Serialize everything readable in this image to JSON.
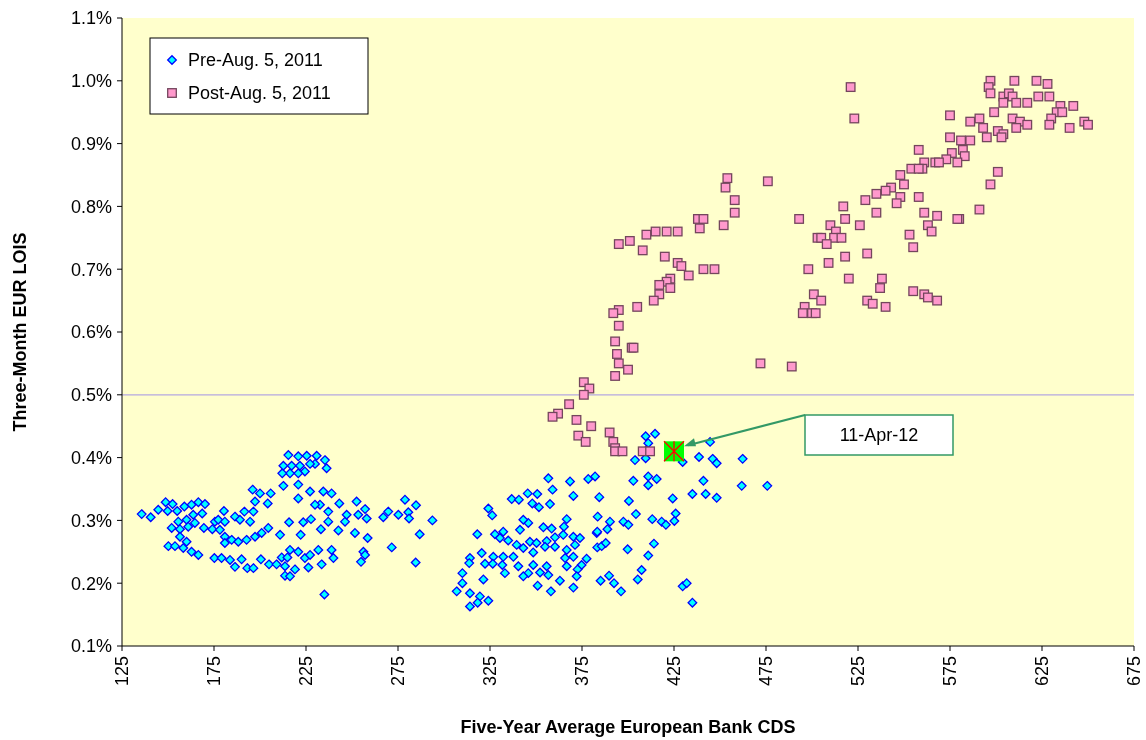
{
  "chart_data": {
    "type": "scatter",
    "xlabel": "Five-Year Average European Bank CDS",
    "ylabel": "Three-Month EUR LOIS",
    "xlim": [
      125,
      675
    ],
    "xticks": [
      125,
      175,
      225,
      275,
      325,
      375,
      425,
      475,
      525,
      575,
      625,
      675
    ],
    "ylim": [
      0.1,
      1.1
    ],
    "yticks": [
      {
        "value": 0.1,
        "label": "0.1%"
      },
      {
        "value": 0.2,
        "label": "0.2%"
      },
      {
        "value": 0.3,
        "label": "0.3%"
      },
      {
        "value": 0.4,
        "label": "0.4%"
      },
      {
        "value": 0.5,
        "label": "0.5%"
      },
      {
        "value": 0.6,
        "label": "0.6%"
      },
      {
        "value": 0.7,
        "label": "0.7%"
      },
      {
        "value": 0.8,
        "label": "0.8%"
      },
      {
        "value": 0.9,
        "label": "0.9%"
      },
      {
        "value": 1.0,
        "label": "1.0%"
      },
      {
        "value": 1.1,
        "label": "1.1%"
      }
    ],
    "grid": false,
    "legend": "top left",
    "ref_lines": [
      {
        "axis": "y",
        "value": 0.5,
        "color": "#b4a8e0"
      }
    ],
    "annotations": [
      "11-Apr-12"
    ],
    "series": [
      {
        "name": "Pre-Aug. 5, 2011",
        "color": "#00ffff",
        "marker": "diamond",
        "x": [
          135.7,
          140.6,
          144.7,
          148.7,
          152.5,
          149.8,
          155.0,
          158.9,
          162.8,
          166.5,
          170.1,
          168.6,
          163.7,
          160.1,
          155.6,
          152.0,
          156.5,
          161.0,
          164.6,
          156.5,
          160.1,
          150.2,
          153.8,
          158.3,
          162.8,
          166.5,
          169.5,
          174.1,
          175.5,
          180.4,
          186.4,
          191.5,
          196.4,
          196.0,
          200.0,
          205.8,
          204.2,
          197.3,
          177.3,
          180.9,
          178.2,
          180.9,
          180.9,
          184.6,
          188.2,
          192.7,
          197.3,
          200.9,
          204.5,
          194.6,
          189.1,
          175.2,
          179.1,
          183.7,
          190.0,
          186.4,
          193.1,
          196.4,
          200.5,
          204.9,
          209.0,
          211.8,
          214.9,
          213.6,
          213.6,
          216.3,
          219.0,
          224.4,
          220.8,
          216.3,
          226.3,
          233.5,
          227.2,
          231.7,
          238.9,
          239.9,
          235.0,
          210.9,
          215.8,
          222.1,
          223.5,
          227.7,
          233.1,
          237.1,
          242.6,
          246.2,
          251.6,
          247.1,
          253.4,
          258.0,
          257.1,
          252.5,
          243.1,
          237.1,
          232.6,
          229.9,
          238.9,
          234.4,
          227.2,
          220.8,
          220.8,
          212.7,
          215.4,
          220.8,
          225.4,
          230.8,
          235.3,
          236.2,
          229.9,
          224.4,
          220.8,
          216.3,
          212.1,
          212.7,
          217.2,
          221.7,
          227.2,
          258.5,
          256.2,
          257.1,
          254.9,
          269.7,
          267.0,
          275.2,
          280.6,
          278.8,
          284.8,
          281.0,
          271.6,
          286.8,
          284.6,
          293.7,
          409.6,
          414.7,
          411.0,
          410.1,
          403.8,
          409.6,
          429.7,
          444.6,
          438.6,
          446.0,
          448.2,
          462.3,
          402.9,
          411.0,
          415.6,
          411.0,
          441.0,
          461.8,
          475.7,
          435.0,
          442.2,
          448.2,
          424.3,
          400.5,
          384.4,
          370.3,
          356.7,
          368.5,
          378.4,
          382.1,
          359.0,
          345.5,
          350.7,
          336.8,
          340.7,
          348.0,
          351.6,
          357.6,
          324.1,
          326.2,
          404.3,
          383.5,
          390.2,
          397.5,
          400.2,
          413.2,
          418.3,
          420.6,
          425.2,
          425.9,
          388.8,
          383.0,
          366.7,
          365.2,
          358.5,
          354.0,
          345.8,
          343.1,
          341.3,
          332.2,
          327.7,
          318.1,
          330.4,
          334.9,
          339.5,
          346.7,
          350.3,
          355.8,
          360.3,
          364.8,
          370.3,
          373.9,
          371.2,
          366.7,
          360.3,
          354.9,
          348.5,
          343.1,
          337.7,
          332.2,
          326.8,
          320.5,
          314.1,
          313.7,
          322.3,
          326.5,
          331.7,
          340.4,
          348.5,
          355.8,
          365.8,
          370.3,
          377.5,
          374.8,
          372.6,
          366.7,
          372.1,
          363.0,
          356.7,
          352.2,
          345.8,
          343.1,
          333.1,
          321.4,
          310.0,
          310.0,
          306.9,
          314.1,
          319.5,
          324.1,
          318.3,
          314.1,
          350.9,
          358.1,
          370.3,
          385.1,
          389.7,
          392.4,
          396.2,
          383.3,
          385.7,
          387.9,
          399.8,
          414.1,
          411.0,
          407.4,
          405.3,
          429.7,
          431.9,
          435.0,
          383.3
        ],
        "values": [
          0.31,
          0.305,
          0.317,
          0.329,
          0.326,
          0.315,
          0.315,
          0.322,
          0.325,
          0.329,
          0.326,
          0.311,
          0.309,
          0.301,
          0.298,
          0.288,
          0.286,
          0.29,
          0.296,
          0.274,
          0.266,
          0.259,
          0.259,
          0.256,
          0.25,
          0.245,
          0.288,
          0.286,
          0.298,
          0.315,
          0.306,
          0.314,
          0.314,
          0.349,
          0.343,
          0.343,
          0.327,
          0.33,
          0.301,
          0.298,
          0.285,
          0.274,
          0.264,
          0.269,
          0.266,
          0.269,
          0.274,
          0.28,
          0.288,
          0.298,
          0.301,
          0.24,
          0.24,
          0.237,
          0.238,
          0.226,
          0.224,
          0.224,
          0.238,
          0.23,
          0.23,
          0.241,
          0.241,
          0.227,
          0.212,
          0.211,
          0.222,
          0.24,
          0.25,
          0.253,
          0.225,
          0.23,
          0.245,
          0.253,
          0.253,
          0.24,
          0.182,
          0.277,
          0.297,
          0.277,
          0.297,
          0.302,
          0.286,
          0.298,
          0.284,
          0.298,
          0.28,
          0.309,
          0.309,
          0.303,
          0.318,
          0.33,
          0.327,
          0.314,
          0.325,
          0.325,
          0.343,
          0.346,
          0.346,
          0.335,
          0.357,
          0.355,
          0.404,
          0.402,
          0.403,
          0.403,
          0.396,
          0.383,
          0.39,
          0.378,
          0.375,
          0.375,
          0.375,
          0.387,
          0.387,
          0.387,
          0.39,
          0.272,
          0.25,
          0.245,
          0.234,
          0.314,
          0.305,
          0.309,
          0.313,
          0.333,
          0.324,
          0.303,
          0.257,
          0.278,
          0.233,
          0.3,
          0.434,
          0.438,
          0.423,
          0.412,
          0.396,
          0.399,
          0.393,
          0.425,
          0.401,
          0.398,
          0.391,
          0.398,
          0.363,
          0.37,
          0.366,
          0.356,
          0.363,
          0.355,
          0.355,
          0.342,
          0.342,
          0.336,
          0.335,
          0.331,
          0.337,
          0.339,
          0.367,
          0.362,
          0.366,
          0.37,
          0.349,
          0.343,
          0.342,
          0.334,
          0.333,
          0.327,
          0.321,
          0.326,
          0.319,
          0.308,
          0.31,
          0.306,
          0.298,
          0.298,
          0.293,
          0.302,
          0.298,
          0.293,
          0.299,
          0.311,
          0.286,
          0.28,
          0.302,
          0.29,
          0.287,
          0.289,
          0.296,
          0.301,
          0.285,
          0.282,
          0.278,
          0.278,
          0.272,
          0.268,
          0.261,
          0.266,
          0.264,
          0.267,
          0.273,
          0.277,
          0.274,
          0.272,
          0.261,
          0.253,
          0.258,
          0.258,
          0.249,
          0.256,
          0.242,
          0.242,
          0.242,
          0.248,
          0.24,
          0.232,
          0.231,
          0.231,
          0.229,
          0.227,
          0.229,
          0.227,
          0.24,
          0.242,
          0.239,
          0.229,
          0.222,
          0.227,
          0.211,
          0.204,
          0.213,
          0.217,
          0.216,
          0.211,
          0.216,
          0.206,
          0.216,
          0.2,
          0.187,
          0.184,
          0.179,
          0.172,
          0.169,
          0.163,
          0.196,
          0.187,
          0.193,
          0.204,
          0.212,
          0.2,
          0.187,
          0.257,
          0.259,
          0.264,
          0.254,
          0.263,
          0.244,
          0.221,
          0.206,
          0.195,
          0.2,
          0.169,
          0.282
        ]
      },
      {
        "name": "Post-Aug. 5, 2011",
        "color": "#ff99cc",
        "marker": "square",
        "x": [
          521,
          523,
          476,
          597,
          596,
          597,
          610,
          622,
          628,
          604,
          607,
          609,
          604,
          611,
          617,
          623,
          629,
          635,
          633,
          636,
          642,
          630,
          629,
          640,
          648,
          650,
          599,
          575,
          586,
          591,
          609,
          613,
          617,
          611,
          593,
          601,
          604,
          603,
          595,
          575,
          581,
          586,
          582,
          583,
          576,
          573,
          579,
          558,
          561,
          560,
          554,
          558,
          567,
          569,
          601,
          597,
          548,
          550,
          543,
          540,
          535,
          529,
          548,
          546,
          558,
          517,
          535,
          561,
          568,
          591,
          580,
          579,
          493,
          518,
          510,
          526,
          563,
          565,
          503,
          505,
          513,
          512,
          516,
          508,
          553,
          555,
          518,
          509,
          530,
          498,
          520,
          538,
          537,
          501,
          505,
          496,
          495,
          500,
          502,
          530,
          533,
          540,
          555,
          561,
          563,
          568,
          454,
          453,
          458,
          458,
          438,
          441,
          439,
          452,
          395,
          401,
          410,
          415,
          421,
          427,
          408,
          420,
          427,
          429,
          433,
          441,
          447,
          423,
          421,
          417,
          423,
          417,
          414,
          405,
          395,
          392,
          395,
          393,
          402,
          403,
          394,
          395,
          400,
          393,
          472,
          489,
          376,
          379,
          376,
          368,
          362,
          359,
          372,
          380,
          390,
          373,
          377,
          392,
          393,
          393,
          397,
          408,
          412
        ],
        "values": [
          0.99,
          0.94,
          0.84,
          1.0,
          0.99,
          0.98,
          1.0,
          1.0,
          0.995,
          0.975,
          0.98,
          0.975,
          0.965,
          0.965,
          0.965,
          0.975,
          0.975,
          0.96,
          0.95,
          0.95,
          0.96,
          0.94,
          0.93,
          0.925,
          0.935,
          0.93,
          0.95,
          0.945,
          0.935,
          0.94,
          0.94,
          0.935,
          0.93,
          0.925,
          0.925,
          0.92,
          0.915,
          0.91,
          0.91,
          0.91,
          0.905,
          0.905,
          0.89,
          0.88,
          0.885,
          0.875,
          0.87,
          0.89,
          0.87,
          0.86,
          0.86,
          0.86,
          0.87,
          0.87,
          0.855,
          0.835,
          0.85,
          0.835,
          0.83,
          0.825,
          0.82,
          0.81,
          0.815,
          0.805,
          0.815,
          0.8,
          0.79,
          0.79,
          0.785,
          0.795,
          0.78,
          0.78,
          0.78,
          0.78,
          0.77,
          0.77,
          0.77,
          0.76,
          0.75,
          0.75,
          0.76,
          0.75,
          0.75,
          0.74,
          0.755,
          0.735,
          0.72,
          0.71,
          0.725,
          0.7,
          0.685,
          0.685,
          0.67,
          0.66,
          0.65,
          0.64,
          0.63,
          0.63,
          0.63,
          0.65,
          0.645,
          0.64,
          0.665,
          0.66,
          0.655,
          0.65,
          0.845,
          0.83,
          0.81,
          0.79,
          0.78,
          0.78,
          0.765,
          0.77,
          0.74,
          0.745,
          0.755,
          0.76,
          0.76,
          0.76,
          0.73,
          0.72,
          0.71,
          0.705,
          0.69,
          0.7,
          0.7,
          0.685,
          0.68,
          0.675,
          0.67,
          0.66,
          0.65,
          0.64,
          0.635,
          0.63,
          0.61,
          0.585,
          0.575,
          0.575,
          0.565,
          0.55,
          0.54,
          0.53,
          0.55,
          0.545,
          0.52,
          0.51,
          0.5,
          0.485,
          0.47,
          0.465,
          0.46,
          0.45,
          0.44,
          0.435,
          0.425,
          0.425,
          0.415,
          0.41,
          0.41,
          0.41,
          0.41
        ]
      },
      {
        "color": "#00ff00",
        "marker": "square",
        "x": [
          425
        ],
        "values": [
          0.41
        ]
      }
    ]
  }
}
